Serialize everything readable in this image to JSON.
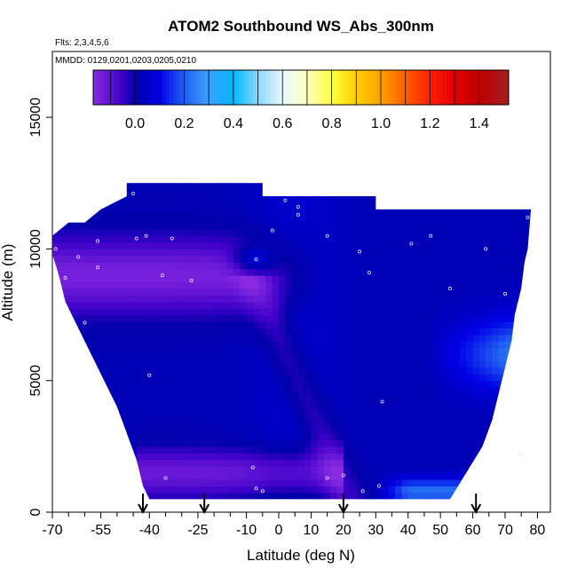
{
  "chart_data": {
    "type": "heatmap",
    "title": "ATOM2 Southbound WS_Abs_300nm",
    "subtitle_flights": "Flts: 2,3,4,5,6",
    "subtitle_dates": "MMDD: 0129,0201,0203,0205,0210",
    "xlabel": "Latitude (deg N)",
    "ylabel": "Altitude (m)",
    "xlim": [
      -70,
      84
    ],
    "ylim": [
      0,
      17500
    ],
    "x_ticks": [
      -70,
      -55,
      -40,
      -25,
      -10,
      0,
      10,
      20,
      30,
      40,
      50,
      60,
      70,
      80
    ],
    "x_minor_ticks": [
      -65,
      -60,
      -50,
      -45,
      -35,
      -30,
      -20,
      -15,
      -5,
      5,
      15,
      25,
      35,
      45,
      55,
      65,
      75
    ],
    "y_ticks": [
      0,
      5000,
      10000,
      15000
    ],
    "colorbar": {
      "ticks": [
        0.0,
        0.2,
        0.4,
        0.6,
        0.8,
        1.0,
        1.2,
        1.4
      ],
      "tick_labels": [
        "0.0",
        "0.2",
        "0.4",
        "0.6",
        "0.8",
        "1.0",
        "1.2",
        "1.4"
      ],
      "range": [
        -0.17,
        1.52
      ],
      "stops": [
        {
          "v": -0.17,
          "c": "#8a2be2"
        },
        {
          "v": -0.05,
          "c": "#3d00c8"
        },
        {
          "v": 0.0,
          "c": "#0000a8"
        },
        {
          "v": 0.1,
          "c": "#0000e6"
        },
        {
          "v": 0.2,
          "c": "#2060f0"
        },
        {
          "v": 0.3,
          "c": "#3fa0ff"
        },
        {
          "v": 0.4,
          "c": "#00b8ff"
        },
        {
          "v": 0.5,
          "c": "#88d8ff"
        },
        {
          "v": 0.6,
          "c": "#e8f8ff"
        },
        {
          "v": 0.7,
          "c": "#ffffc0"
        },
        {
          "v": 0.8,
          "c": "#ffff40"
        },
        {
          "v": 0.9,
          "c": "#ffd000"
        },
        {
          "v": 1.0,
          "c": "#ffa000"
        },
        {
          "v": 1.1,
          "c": "#ff6000"
        },
        {
          "v": 1.2,
          "c": "#ff2000"
        },
        {
          "v": 1.3,
          "c": "#e00000"
        },
        {
          "v": 1.4,
          "c": "#c00000"
        },
        {
          "v": 1.52,
          "c": "#a02020"
        }
      ]
    },
    "profile_latitudes": [
      -42,
      -23,
      20,
      61
    ],
    "sample_points": [
      {
        "x": -45,
        "y": 12100
      },
      {
        "x": 2,
        "y": 11850
      },
      {
        "x": 6,
        "y": 11600
      },
      {
        "x": 6,
        "y": 11300
      },
      {
        "x": 77,
        "y": 11200
      },
      {
        "x": -41,
        "y": 10500
      },
      {
        "x": -44,
        "y": 10400
      },
      {
        "x": -56,
        "y": 10300
      },
      {
        "x": -33,
        "y": 10400
      },
      {
        "x": -2,
        "y": 10700
      },
      {
        "x": 15,
        "y": 10500
      },
      {
        "x": 47,
        "y": 10500
      },
      {
        "x": 41,
        "y": 10200
      },
      {
        "x": 64,
        "y": 10000
      },
      {
        "x": -69,
        "y": 10000
      },
      {
        "x": -62,
        "y": 9700
      },
      {
        "x": 25,
        "y": 9900
      },
      {
        "x": -7,
        "y": 9600
      },
      {
        "x": -56,
        "y": 9300
      },
      {
        "x": 28,
        "y": 9100
      },
      {
        "x": -66,
        "y": 8900
      },
      {
        "x": -36,
        "y": 9000
      },
      {
        "x": -27,
        "y": 8800
      },
      {
        "x": 53,
        "y": 8500
      },
      {
        "x": 70,
        "y": 8300
      },
      {
        "x": -60,
        "y": 7200
      },
      {
        "x": -40,
        "y": 5200
      },
      {
        "x": 32,
        "y": 4200
      },
      {
        "x": 75,
        "y": 2200
      },
      {
        "x": -8,
        "y": 1700
      },
      {
        "x": 20,
        "y": 1400
      },
      {
        "x": -35,
        "y": 1300
      },
      {
        "x": 15,
        "y": 1300
      },
      {
        "x": 31,
        "y": 1000
      },
      {
        "x": -7,
        "y": 900
      },
      {
        "x": -5,
        "y": 800
      },
      {
        "x": 26,
        "y": 800
      }
    ]
  }
}
